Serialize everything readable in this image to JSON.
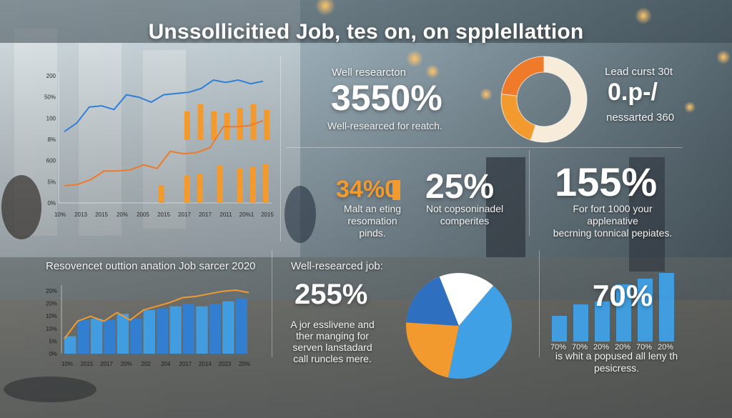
{
  "title": "Unssollicitied Job, tes on, on spplellattion",
  "colors": {
    "orange": "#F39A2E",
    "orange_dark": "#EE7A2A",
    "blue": "#2F7FD6",
    "blue_light": "#3FA0E6",
    "cream": "#F7EBD9",
    "white": "#FFFFFF"
  },
  "panel_top_right": {
    "label": "Well researcton",
    "big": "3550%",
    "caption": "Well-researced for reatch.",
    "side_label": "Lead curst 30t",
    "side_value": "0.p-/",
    "side_caption": "nessarted 360"
  },
  "stat_mid_1": {
    "value": "34%0",
    "caption_1": "Malt an eting",
    "caption_2": "resomation pinds."
  },
  "stat_mid_2": {
    "value": "25%",
    "caption_1": "Not copsoninadel",
    "caption_2": "comperites"
  },
  "stat_mid_3": {
    "value": "155%",
    "caption_1": "For fort 1000 your applenative",
    "caption_2": "becrning tonnical pepiates."
  },
  "panel_bottom_left": {
    "label": "Resovencet outtion anation Job sarcer 2020"
  },
  "panel_bottom_mid": {
    "label": "Well-researced job:",
    "big": "255%",
    "caption_1": "A jor esslivene and",
    "caption_2": "ther manging for",
    "caption_3": "serven lanstadard",
    "caption_4": "call runcles mere."
  },
  "panel_bottom_right": {
    "big": "70%",
    "caption_1": "is whit a popused all leny th",
    "caption_2": "pesicress."
  },
  "chart_data": [
    {
      "type": "line",
      "y_tick_labels": [
        "200",
        "50%",
        "100",
        "8%",
        "600",
        "5%",
        "0%"
      ],
      "x_tick_labels": [
        "10%",
        "2013",
        "2015",
        "20%",
        "2005",
        "2015",
        "2017",
        "2017",
        "2011",
        "20%1",
        "2015"
      ],
      "series": [
        {
          "values": [
            58,
            65,
            78,
            79,
            76,
            88,
            86,
            82,
            88,
            89,
            90,
            93,
            100,
            98,
            100,
            97,
            99
          ]
        },
        {
          "values": [
            14,
            15,
            19,
            26,
            26,
            27,
            31,
            28,
            42,
            40,
            41,
            45,
            62,
            62,
            63,
            67
          ]
        }
      ],
      "bars_upper": [
        40,
        50,
        40,
        38,
        45,
        50,
        42
      ],
      "bars_lower": [
        25,
        38,
        40,
        52,
        48,
        50,
        55
      ]
    },
    {
      "type": "donut",
      "slices": [
        {
          "value": 55
        },
        {
          "value": 22
        },
        {
          "value": 23
        }
      ]
    },
    {
      "type": "bar",
      "y_tick_labels": [
        "20%",
        "20%",
        "10%",
        "10%",
        "5%",
        "0%"
      ],
      "x_tick_labels": [
        "10%",
        "2015",
        "2017",
        "20%",
        "202",
        "204",
        "2017",
        "2014",
        "2023",
        "20%"
      ],
      "values": [
        14,
        27,
        28,
        27,
        32,
        28,
        35,
        36,
        38,
        40,
        38,
        40,
        42,
        44
      ],
      "trend": [
        12,
        26,
        30,
        26,
        33,
        27,
        35,
        38,
        41,
        45,
        46,
        48,
        50,
        51,
        49
      ]
    },
    {
      "type": "pie",
      "slices": [
        {
          "value": 42
        },
        {
          "value": 38
        },
        {
          "value": 20
        }
      ]
    },
    {
      "type": "bar",
      "x_tick_labels": [
        "70%",
        "70%",
        "20%",
        "20%",
        "70%",
        "20%"
      ],
      "values": [
        45,
        65,
        70,
        100,
        110,
        120
      ]
    }
  ]
}
